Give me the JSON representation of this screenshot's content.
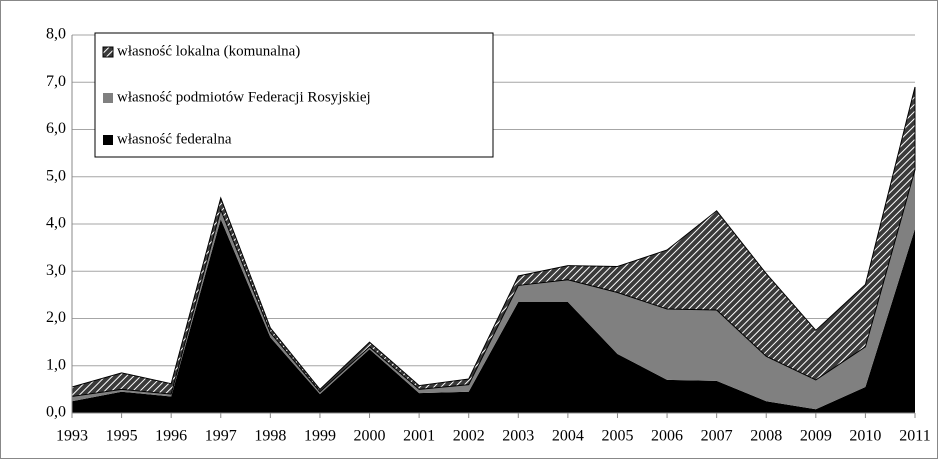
{
  "chart_data": {
    "type": "stacked_area",
    "categories": [
      "1993",
      "1995",
      "1996",
      "1997",
      "1998",
      "1999",
      "2000",
      "2001",
      "2002",
      "2003",
      "2004",
      "2005",
      "2006",
      "2007",
      "2008",
      "2009",
      "2010",
      "2011"
    ],
    "series": [
      {
        "name": "własność federalna",
        "color": "#000000",
        "values": [
          0.25,
          0.45,
          0.35,
          4.1,
          1.6,
          0.4,
          1.35,
          0.42,
          0.45,
          2.35,
          2.35,
          1.25,
          0.7,
          0.68,
          0.25,
          0.08,
          0.55,
          3.9
        ]
      },
      {
        "name": "własność podmiotów Federacji Rosyjskiej",
        "color": "#808080",
        "values": [
          0.1,
          0.05,
          0.05,
          0.2,
          0.1,
          0.05,
          0.05,
          0.08,
          0.15,
          0.35,
          0.47,
          1.3,
          1.5,
          1.5,
          0.95,
          0.62,
          0.85,
          1.25
        ]
      },
      {
        "name": "własność lokalna (komunalna)",
        "color": "#3a3a3a",
        "hatched": true,
        "values": [
          0.2,
          0.35,
          0.22,
          0.25,
          0.1,
          0.05,
          0.1,
          0.08,
          0.12,
          0.2,
          0.3,
          0.55,
          1.25,
          2.1,
          1.75,
          1.05,
          1.32,
          1.75
        ]
      }
    ],
    "ylim": [
      0,
      8
    ],
    "yticks": [
      {
        "value": 0,
        "label": "0,0"
      },
      {
        "value": 1,
        "label": "1,0"
      },
      {
        "value": 2,
        "label": "2,0"
      },
      {
        "value": 3,
        "label": "3,0"
      },
      {
        "value": 4,
        "label": "4,0"
      },
      {
        "value": 5,
        "label": "5,0"
      },
      {
        "value": 6,
        "label": "6,0"
      },
      {
        "value": 7,
        "label": "7,0"
      },
      {
        "value": 8,
        "label": "8,0"
      }
    ],
    "grid": true
  }
}
